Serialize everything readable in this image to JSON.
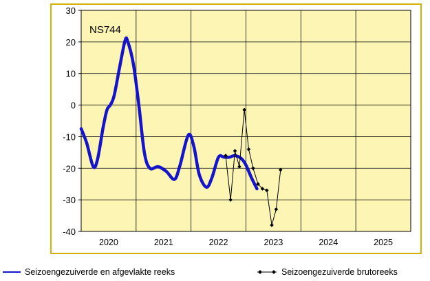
{
  "chart_data": {
    "type": "line",
    "station_label": "NS744",
    "x_tick_labels": [
      "2020",
      "2021",
      "2022",
      "2023",
      "2024",
      "2025"
    ],
    "y_ticks": [
      30,
      20,
      10,
      0,
      -10,
      -20,
      -30,
      -40
    ],
    "ylim": [
      -40,
      30
    ],
    "xlim": [
      2019.5,
      2025.5
    ],
    "grid": true,
    "plot_background": "#fdf5b4",
    "series": [
      {
        "name": "Seizoengezuiverde en afgevlakte reeks",
        "color": "#1414c8",
        "style": "smooth-line",
        "points": [
          [
            2019.5,
            -7.5
          ],
          [
            2019.6,
            -12
          ],
          [
            2019.72,
            -19.5
          ],
          [
            2019.8,
            -17
          ],
          [
            2019.9,
            -7
          ],
          [
            2019.97,
            -1.5
          ],
          [
            2020.03,
            0
          ],
          [
            2020.1,
            3
          ],
          [
            2020.2,
            12
          ],
          [
            2020.3,
            20.5
          ],
          [
            2020.35,
            20
          ],
          [
            2020.45,
            13
          ],
          [
            2020.55,
            0
          ],
          [
            2020.65,
            -15
          ],
          [
            2020.75,
            -20
          ],
          [
            2020.9,
            -19.5
          ],
          [
            2021.05,
            -21
          ],
          [
            2021.2,
            -23.5
          ],
          [
            2021.3,
            -19
          ],
          [
            2021.45,
            -9.5
          ],
          [
            2021.55,
            -13
          ],
          [
            2021.65,
            -22
          ],
          [
            2021.78,
            -26
          ],
          [
            2021.88,
            -23
          ],
          [
            2022.0,
            -16.5
          ],
          [
            2022.1,
            -16.5
          ],
          [
            2022.2,
            -16.5
          ],
          [
            2022.3,
            -16
          ],
          [
            2022.42,
            -17
          ],
          [
            2022.5,
            -19
          ],
          [
            2022.6,
            -23
          ],
          [
            2022.7,
            -26.5
          ]
        ]
      },
      {
        "name": "Seizoengezuiverde brutoreeks",
        "color": "#000000",
        "style": "line-with-diamonds",
        "points": [
          [
            2022.13,
            -16
          ],
          [
            2022.22,
            -30
          ],
          [
            2022.3,
            -14.5
          ],
          [
            2022.38,
            -19.5
          ],
          [
            2022.47,
            -1.5
          ],
          [
            2022.55,
            -14
          ],
          [
            2022.63,
            -20
          ],
          [
            2022.72,
            -25
          ],
          [
            2022.8,
            -26.5
          ],
          [
            2022.88,
            -27
          ],
          [
            2022.97,
            -38
          ],
          [
            2023.05,
            -33
          ],
          [
            2023.13,
            -20.5
          ]
        ]
      }
    ],
    "legend_placement": "bottom"
  },
  "legend": {
    "left_label": "Seizoengezuiverde en afgevlakte reeks",
    "right_label": "Seizoengezuiverde brutoreeks"
  }
}
